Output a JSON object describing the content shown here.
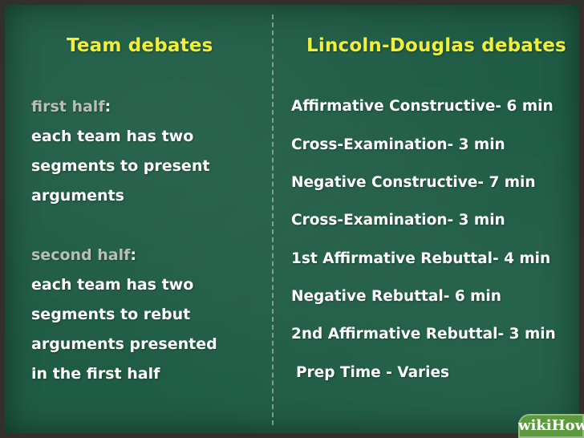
{
  "left": {
    "heading": "Team debates",
    "first_half": {
      "label": "first half",
      "colon": ":",
      "lines": [
        "each team has two",
        "segments to present",
        "arguments"
      ]
    },
    "second_half": {
      "label": "second half",
      "colon": ":",
      "lines": [
        "each team has two",
        "segments to rebut",
        "arguments presented",
        "in the first half"
      ]
    }
  },
  "right": {
    "heading": "Lincoln-Douglas debates",
    "items": [
      "Affirmative Constructive- 6 min",
      "Cross-Examination- 3 min",
      "Negative Constructive- 7 min",
      "Cross-Examination- 3 min",
      "1st Affirmative Rebuttal- 4 min",
      "Negative Rebuttal- 6 min",
      "2nd Affirmative Rebuttal- 3 min",
      "Prep Time - Varies"
    ]
  },
  "watermark": "wikiHow"
}
